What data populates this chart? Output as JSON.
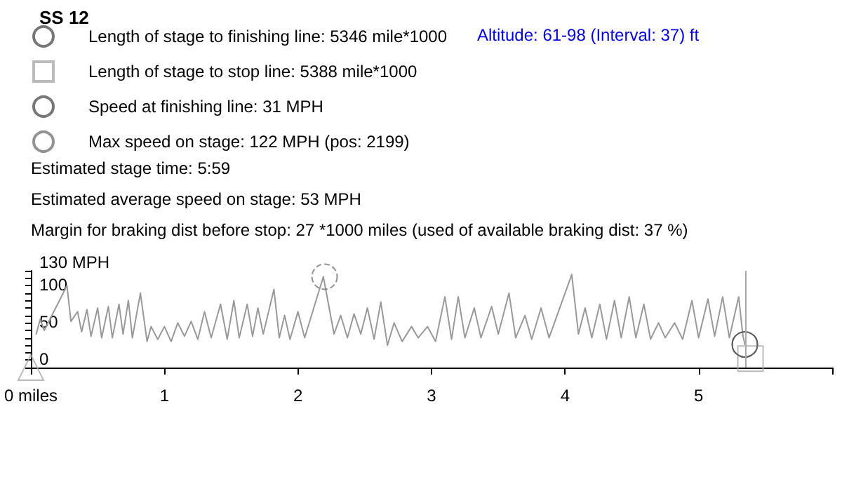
{
  "chart_data": {
    "type": "line",
    "title": "SS 12",
    "annotations": [
      "Altitude: 61-98 (Interval: 37) ft",
      "Estimated stage time: 5:59",
      "Estimated average speed on stage: 53 MPH",
      "Margin for braking dist before stop: 27 *1000 miles (used of available braking dist: 37 %)"
    ],
    "xlim": [
      0,
      6
    ],
    "xticks": [
      {
        "value": 0,
        "label": "0 miles"
      },
      1,
      2,
      3,
      4,
      5,
      {
        "value": 6,
        "label": null
      }
    ],
    "ylim": [
      0,
      130
    ],
    "yticks": [
      0,
      {
        "value": 10,
        "label": null
      },
      {
        "value": 20,
        "label": null
      },
      {
        "value": 30,
        "label": null
      },
      {
        "value": 40,
        "label": null
      },
      50,
      {
        "value": 60,
        "label": null
      },
      {
        "value": 70,
        "label": null
      },
      {
        "value": 80,
        "label": null
      },
      {
        "value": 90,
        "label": null
      },
      100,
      {
        "value": 110,
        "label": null
      },
      {
        "value": 120,
        "label": null
      },
      {
        "value": 130,
        "label": "130 MPH"
      }
    ],
    "grid": false,
    "legend": "top left",
    "marker": "none",
    "line_style": "solid",
    "ref_lines": [
      {
        "axis": "x",
        "value": 5.346,
        "color": "#aaaaaa"
      }
    ],
    "series": [
      {
        "type": "line",
        "color": "#999999",
        "x": [
          0.04,
          0.07,
          0.1,
          0.2,
          0.27,
          0.3,
          0.35,
          0.38,
          0.42,
          0.45,
          0.5,
          0.53,
          0.58,
          0.61,
          0.66,
          0.69,
          0.73,
          0.76,
          0.82,
          0.87,
          0.9,
          0.95,
          1.0,
          1.05,
          1.1,
          1.15,
          1.2,
          1.25,
          1.3,
          1.35,
          1.42,
          1.47,
          1.52,
          1.56,
          1.62,
          1.66,
          1.7,
          1.74,
          1.82,
          1.86,
          1.9,
          1.94,
          2.0,
          2.05,
          2.19,
          2.27,
          2.32,
          2.37,
          2.42,
          2.47,
          2.52,
          2.57,
          2.62,
          2.67,
          2.72,
          2.78,
          2.85,
          2.9,
          2.97,
          3.03,
          3.1,
          3.15,
          3.2,
          3.25,
          3.32,
          3.37,
          3.45,
          3.5,
          3.58,
          3.63,
          3.7,
          3.75,
          3.82,
          3.88,
          4.05,
          4.1,
          4.15,
          4.2,
          4.26,
          4.31,
          4.37,
          4.42,
          4.48,
          4.53,
          4.59,
          4.64,
          4.7,
          4.75,
          4.82,
          4.88,
          4.95,
          5.0,
          5.07,
          5.12,
          5.18,
          5.23,
          5.3,
          5.33,
          5.346
        ],
        "values": [
          45,
          65,
          50,
          85,
          110,
          62,
          75,
          48,
          78,
          42,
          80,
          40,
          82,
          40,
          85,
          45,
          90,
          40,
          100,
          35,
          55,
          38,
          55,
          35,
          60,
          42,
          62,
          38,
          75,
          40,
          85,
          38,
          90,
          40,
          85,
          42,
          80,
          45,
          105,
          40,
          70,
          38,
          75,
          40,
          122,
          45,
          70,
          40,
          72,
          45,
          80,
          38,
          88,
          30,
          60,
          35,
          55,
          40,
          55,
          35,
          95,
          38,
          95,
          40,
          80,
          40,
          82,
          45,
          100,
          40,
          70,
          38,
          80,
          40,
          125,
          45,
          80,
          40,
          85,
          38,
          90,
          40,
          95,
          40,
          85,
          38,
          60,
          40,
          60,
          38,
          90,
          40,
          92,
          42,
          95,
          40,
          95,
          45,
          31
        ]
      },
      {
        "type": "scatter",
        "marker": "triangle",
        "color": "#aaaaaa",
        "x": [
          0
        ],
        "values": [
          0
        ]
      },
      {
        "type": "scatter",
        "name": "Length of stage to finishing line: 5346 mile*1000",
        "marker": "circle",
        "color": "#555555",
        "x": [
          5.346
        ],
        "values": [
          31
        ]
      },
      {
        "type": "scatter",
        "name": "Length of stage to stop line: 5388 mile*1000",
        "marker": "square",
        "color": "#aaaaaa",
        "x": [
          5.388
        ],
        "values": [
          12
        ]
      },
      {
        "type": "scatter",
        "name": "Speed at finishing line: 31 MPH",
        "marker": "circle",
        "color": "#555555",
        "x": [
          5.346
        ],
        "values": [
          31
        ]
      },
      {
        "type": "scatter",
        "name": "Max speed on stage: 122 MPH (pos: 2199)",
        "marker": "circle",
        "line_style": "dashed",
        "color": "#777777",
        "x": [
          2.199
        ],
        "values": [
          122
        ]
      }
    ]
  }
}
